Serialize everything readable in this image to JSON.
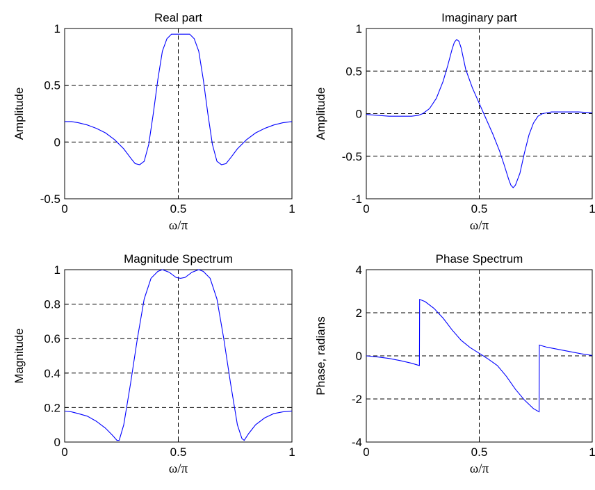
{
  "chart_data": [
    {
      "type": "line",
      "title": "Real part",
      "xlabel": "ω/π",
      "ylabel": "Amplitude",
      "xlim": [
        0,
        1
      ],
      "ylim": [
        -0.5,
        1
      ],
      "xticks": [
        0,
        0.5,
        1
      ],
      "yticks": [
        -0.5,
        0,
        0.5,
        1
      ],
      "xtick_labels": [
        "0",
        "0.5",
        "1"
      ],
      "ytick_labels": [
        "-0.5",
        "0",
        "0.5",
        "1"
      ],
      "grid": true,
      "color": "#0000ff",
      "x": [
        0,
        0.03,
        0.06,
        0.1,
        0.14,
        0.18,
        0.22,
        0.26,
        0.29,
        0.31,
        0.33,
        0.35,
        0.37,
        0.39,
        0.41,
        0.43,
        0.45,
        0.47,
        0.5,
        0.53,
        0.55,
        0.57,
        0.59,
        0.61,
        0.63,
        0.65,
        0.67,
        0.69,
        0.71,
        0.73,
        0.76,
        0.8,
        0.84,
        0.88,
        0.92,
        0.96,
        1
      ],
      "y": [
        0.18,
        0.18,
        0.17,
        0.15,
        0.12,
        0.08,
        0.02,
        -0.06,
        -0.14,
        -0.19,
        -0.2,
        -0.17,
        -0.02,
        0.25,
        0.55,
        0.8,
        0.91,
        0.95,
        0.95,
        0.95,
        0.95,
        0.91,
        0.8,
        0.55,
        0.25,
        -0.02,
        -0.17,
        -0.2,
        -0.19,
        -0.14,
        -0.06,
        0.02,
        0.08,
        0.12,
        0.15,
        0.17,
        0.18
      ]
    },
    {
      "type": "line",
      "title": "Imaginary part",
      "xlabel": "ω/π",
      "ylabel": "Amplitude",
      "xlim": [
        0,
        1
      ],
      "ylim": [
        -1,
        1
      ],
      "xticks": [
        0,
        0.5,
        1
      ],
      "yticks": [
        -1,
        -0.5,
        0,
        0.5,
        1
      ],
      "xtick_labels": [
        "0",
        "0.5",
        "1"
      ],
      "ytick_labels": [
        "-1",
        "-0.5",
        "0",
        "0.5",
        "1"
      ],
      "grid": true,
      "color": "#0000ff",
      "x": [
        0,
        0.05,
        0.1,
        0.15,
        0.2,
        0.23,
        0.25,
        0.28,
        0.31,
        0.34,
        0.36,
        0.38,
        0.39,
        0.4,
        0.41,
        0.42,
        0.44,
        0.47,
        0.5,
        0.53,
        0.56,
        0.59,
        0.61,
        0.63,
        0.64,
        0.65,
        0.66,
        0.68,
        0.7,
        0.72,
        0.74,
        0.76,
        0.78,
        0.82,
        0.88,
        0.94,
        1
      ],
      "y": [
        -0.01,
        -0.02,
        -0.03,
        -0.03,
        -0.03,
        -0.02,
        0.0,
        0.06,
        0.18,
        0.38,
        0.56,
        0.76,
        0.84,
        0.87,
        0.85,
        0.77,
        0.52,
        0.3,
        0.12,
        -0.06,
        -0.24,
        -0.44,
        -0.6,
        -0.77,
        -0.84,
        -0.87,
        -0.84,
        -0.7,
        -0.46,
        -0.25,
        -0.11,
        -0.03,
        0.0,
        0.02,
        0.02,
        0.02,
        0.01
      ]
    },
    {
      "type": "line",
      "title": "Magnitude Spectrum",
      "xlabel": "ω/π",
      "ylabel": "Magnitude",
      "xlim": [
        0,
        1
      ],
      "ylim": [
        0,
        1
      ],
      "xticks": [
        0,
        0.5,
        1
      ],
      "yticks": [
        0,
        0.2,
        0.4,
        0.6,
        0.8,
        1
      ],
      "xtick_labels": [
        "0",
        "0.5",
        "1"
      ],
      "ytick_labels": [
        "0",
        "0.2",
        "0.4",
        "0.6",
        "0.8",
        "1"
      ],
      "grid": true,
      "color": "#0000ff",
      "x": [
        0,
        0.03,
        0.06,
        0.1,
        0.14,
        0.18,
        0.21,
        0.23,
        0.24,
        0.26,
        0.29,
        0.32,
        0.35,
        0.38,
        0.41,
        0.43,
        0.46,
        0.49,
        0.51,
        0.53,
        0.56,
        0.59,
        0.61,
        0.64,
        0.67,
        0.7,
        0.73,
        0.76,
        0.78,
        0.79,
        0.81,
        0.84,
        0.88,
        0.92,
        0.96,
        1
      ],
      "y": [
        0.18,
        0.175,
        0.165,
        0.15,
        0.12,
        0.08,
        0.04,
        0.01,
        0.01,
        0.1,
        0.34,
        0.6,
        0.83,
        0.95,
        0.99,
        1.0,
        0.985,
        0.955,
        0.95,
        0.955,
        0.985,
        1.0,
        0.99,
        0.95,
        0.83,
        0.6,
        0.34,
        0.1,
        0.02,
        0.01,
        0.05,
        0.1,
        0.14,
        0.165,
        0.175,
        0.18
      ]
    },
    {
      "type": "line",
      "title": "Phase Spectrum",
      "xlabel": "ω/π",
      "ylabel": "Phase, radians",
      "xlim": [
        0,
        1
      ],
      "ylim": [
        -4,
        4
      ],
      "xticks": [
        0,
        0.5,
        1
      ],
      "yticks": [
        -4,
        -2,
        0,
        2,
        4
      ],
      "xtick_labels": [
        "0",
        "0.5",
        "1"
      ],
      "ytick_labels": [
        "-4",
        "-2",
        "0",
        "2",
        "4"
      ],
      "grid": true,
      "color": "#0000ff",
      "x": [
        0,
        0.05,
        0.1,
        0.15,
        0.2,
        0.235,
        0.236,
        0.26,
        0.3,
        0.34,
        0.38,
        0.42,
        0.46,
        0.5,
        0.54,
        0.58,
        0.62,
        0.66,
        0.7,
        0.74,
        0.765,
        0.766,
        0.8,
        0.85,
        0.9,
        0.95,
        1
      ],
      "y": [
        0.0,
        -0.05,
        -0.12,
        -0.22,
        -0.34,
        -0.45,
        2.62,
        2.52,
        2.2,
        1.75,
        1.2,
        0.72,
        0.38,
        0.12,
        -0.15,
        -0.45,
        -0.95,
        -1.55,
        -2.05,
        -2.45,
        -2.6,
        0.5,
        0.4,
        0.3,
        0.2,
        0.1,
        0.02
      ]
    }
  ]
}
